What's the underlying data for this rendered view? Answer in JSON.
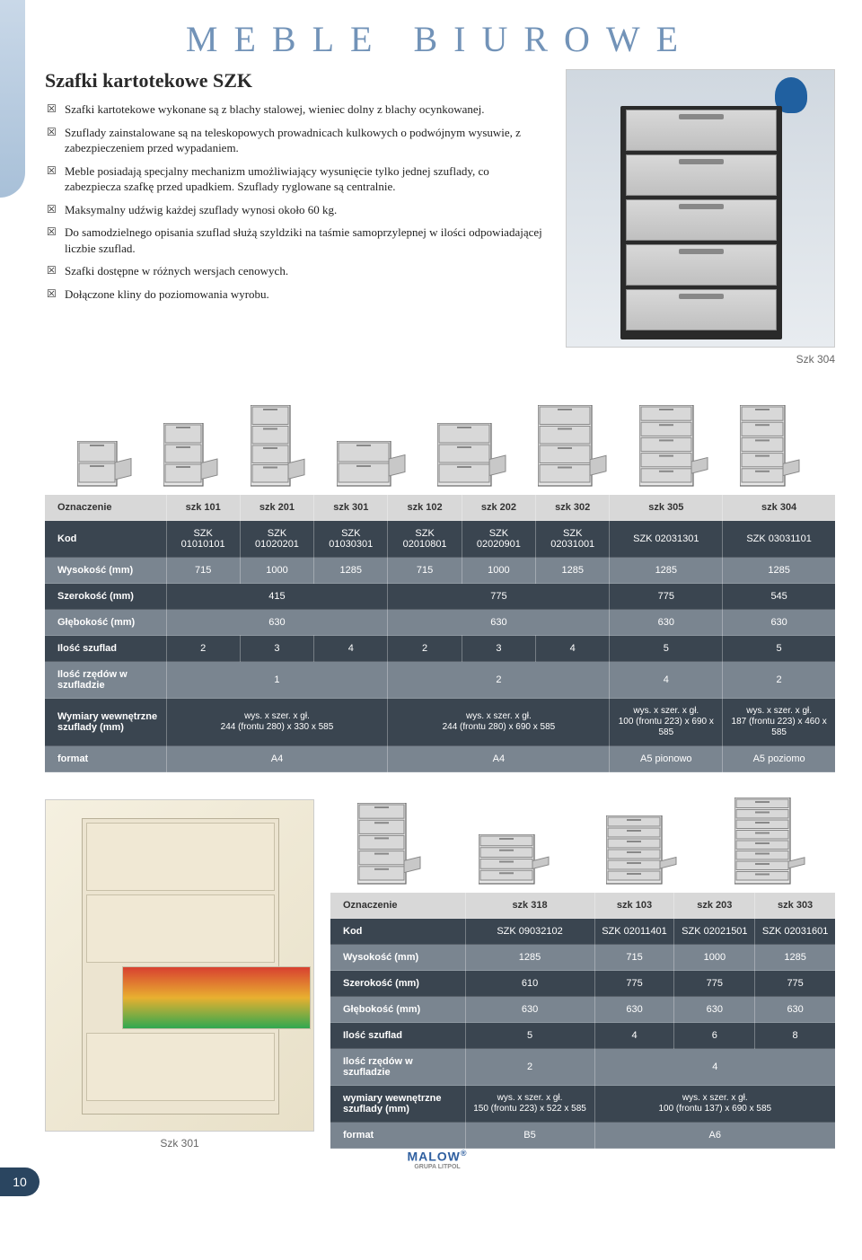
{
  "page_title": "MEBLE BIUROWE",
  "section_title": "Szafki kartotekowe SZK",
  "bullets": [
    "Szafki kartotekowe wykonane są z blachy stalowej, wieniec dolny z blachy ocynkowanej.",
    "Szuflady zainstalowane są na teleskopowych prowadnicach kulkowych o podwójnym wysuwie, z zabezpieczeniem przed wypadaniem.",
    "Meble posiadają specjalny mechanizm umożliwiający wysunięcie tylko jednej szuflady, co zabezpiecza szafkę przed upadkiem. Szuflady ryglowane są centralnie.",
    "Maksymalny udźwig każdej szuflady wynosi około 60 kg.",
    "Do samodzielnego opisania szuflad służą szyldziki na taśmie samoprzylepnej w ilości odpowiadającej liczbie szuflad.",
    "Szafki dostępne w różnych wersjach cenowych.",
    "Dołączone kliny do poziomowania wyrobu."
  ],
  "photo1_caption": "Szk 304",
  "photo2_caption": "Szk 301",
  "page_number": "10",
  "logo_text": "MALOW",
  "logo_sub": "GRUPA LITPOL",
  "colors": {
    "title": "#7293b8",
    "row_dark": "#3a4550",
    "row_light": "#7a8590",
    "header_bg": "#d8d8d8",
    "badge": "#2a4560"
  },
  "table1": {
    "row_labels": [
      "Oznaczenie",
      "Kod",
      "Wysokość (mm)",
      "Szerokość (mm)",
      "Głębokość (mm)",
      "Ilość szuflad",
      "Ilość rzędów w szufladzie",
      "Wymiary wewnętrzne szuflady (mm)",
      "format"
    ],
    "header": [
      "szk 101",
      "szk 201",
      "szk 301",
      "szk 102",
      "szk 202",
      "szk 302",
      "szk 305",
      "szk 304"
    ],
    "kod": [
      "SZK 01010101",
      "SZK 01020201",
      "SZK 01030301",
      "SZK 02010801",
      "SZK 02020901",
      "SZK 02031001",
      "SZK 02031301",
      "SZK 03031101"
    ],
    "wysokosc": [
      "715",
      "1000",
      "1285",
      "715",
      "1000",
      "1285",
      "1285",
      "1285"
    ],
    "szerokosc": {
      "groups": [
        {
          "span": 3,
          "val": "415"
        },
        {
          "span": 3,
          "val": "775"
        },
        {
          "span": 1,
          "val": "775"
        },
        {
          "span": 1,
          "val": "545"
        }
      ]
    },
    "glebokosc": {
      "groups": [
        {
          "span": 3,
          "val": "630"
        },
        {
          "span": 3,
          "val": "630"
        },
        {
          "span": 1,
          "val": "630"
        },
        {
          "span": 1,
          "val": "630"
        }
      ]
    },
    "szuflad": [
      "2",
      "3",
      "4",
      "2",
      "3",
      "4",
      "5",
      "5"
    ],
    "rzedow": {
      "groups": [
        {
          "span": 3,
          "val": "1"
        },
        {
          "span": 3,
          "val": "2"
        },
        {
          "span": 1,
          "val": "4"
        },
        {
          "span": 1,
          "val": "2"
        }
      ]
    },
    "wymiary": {
      "groups": [
        {
          "span": 3,
          "l1": "wys. x szer. x gł.",
          "l2": "244 (frontu 280) x 330 x 585"
        },
        {
          "span": 3,
          "l1": "wys. x szer. x gł.",
          "l2": "244 (frontu 280) x 690 x 585"
        },
        {
          "span": 1,
          "l1": "wys. x szer. x gł.",
          "l2": "100 (frontu 223) x 690 x 585"
        },
        {
          "span": 1,
          "l1": "wys. x szer. x gł.",
          "l2": "187 (frontu 223) x 460 x 585"
        }
      ]
    },
    "format": {
      "groups": [
        {
          "span": 3,
          "val": "A4"
        },
        {
          "span": 3,
          "val": "A4"
        },
        {
          "span": 1,
          "val": "A5 pionowo"
        },
        {
          "span": 1,
          "val": "A5 poziomo"
        }
      ]
    },
    "icon_drawers": [
      2,
      3,
      4,
      2,
      3,
      4,
      5,
      5
    ],
    "icon_heights": [
      50,
      70,
      90,
      50,
      70,
      90,
      90,
      90
    ],
    "icon_widths": [
      44,
      44,
      44,
      60,
      60,
      60,
      60,
      50
    ]
  },
  "table2": {
    "row_labels": [
      "Oznaczenie",
      "Kod",
      "Wysokość (mm)",
      "Szerokość (mm)",
      "Głębokość (mm)",
      "Ilość szuflad",
      "Ilość rzędów w szufladzie",
      "wymiary wewnętrzne szuflady (mm)",
      "format"
    ],
    "header": [
      "szk 318",
      "szk 103",
      "szk 203",
      "szk 303"
    ],
    "kod": [
      "SZK 09032102",
      "SZK 02011401",
      "SZK 02021501",
      "SZK 02031601"
    ],
    "wysokosc": [
      "1285",
      "715",
      "1000",
      "1285"
    ],
    "szerokosc": [
      "610",
      "775",
      "775",
      "775"
    ],
    "glebokosc": [
      "630",
      "630",
      "630",
      "630"
    ],
    "szuflad": [
      "5",
      "4",
      "6",
      "8"
    ],
    "rzedow": {
      "groups": [
        {
          "span": 1,
          "val": "2"
        },
        {
          "span": 3,
          "val": "4"
        }
      ]
    },
    "wymiary": {
      "groups": [
        {
          "span": 1,
          "l1": "wys. x szer. x gł.",
          "l2": "150 (frontu 223) x 522 x 585"
        },
        {
          "span": 3,
          "l1": "wys. x szer. x gł.",
          "l2": "100 (frontu 137) x 690 x 585"
        }
      ]
    },
    "format": {
      "groups": [
        {
          "span": 1,
          "val": "B5"
        },
        {
          "span": 3,
          "val": "A6"
        }
      ]
    },
    "icon_drawers": [
      5,
      4,
      6,
      8
    ],
    "icon_heights": [
      90,
      55,
      76,
      96
    ],
    "icon_widths": [
      54,
      62,
      62,
      62
    ]
  }
}
